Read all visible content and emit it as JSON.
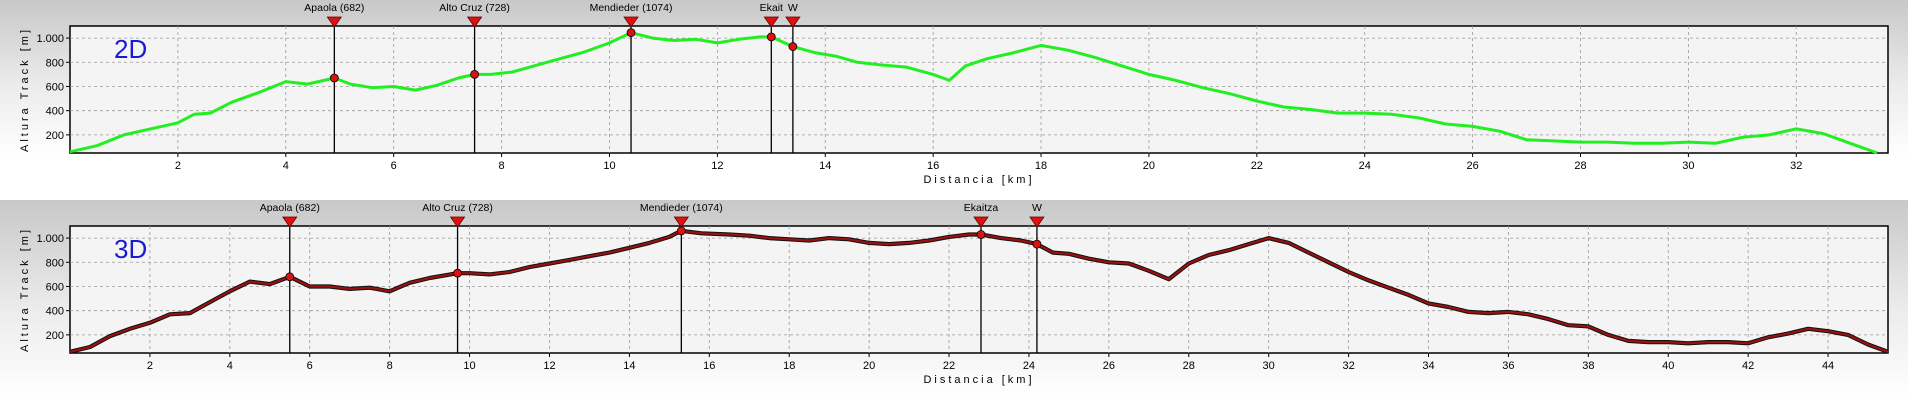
{
  "chart_data": [
    {
      "type": "line",
      "panel_label": "2D",
      "xlabel": "Distancia [km]",
      "ylabel": "Altura Track [m]",
      "xlim": [
        0,
        33.7
      ],
      "ylim": [
        50,
        1100
      ],
      "x_ticks": [
        2,
        4,
        6,
        8,
        10,
        12,
        14,
        16,
        18,
        20,
        22,
        24,
        26,
        28,
        30,
        32
      ],
      "y_ticks": [
        200,
        400,
        600,
        800,
        1000
      ],
      "y_tick_labels": [
        "200",
        "400",
        "600",
        "800",
        "1.000"
      ],
      "grid": true,
      "line_color": "#22ee22",
      "marker_color": "#dd1111",
      "waypoints": [
        {
          "name": "Apaola (682)",
          "x": 4.9,
          "y": 670
        },
        {
          "name": "Alto Cruz (728)",
          "x": 7.5,
          "y": 700
        },
        {
          "name": "Mendieder (1074)",
          "x": 10.4,
          "y": 1045
        },
        {
          "name": "Ekait",
          "x": 13.0,
          "y": 1010
        },
        {
          "name": "W",
          "x": 13.4,
          "y": 930
        }
      ],
      "series": [
        {
          "x": [
            0,
            0.5,
            1,
            1.5,
            2,
            2.3,
            2.6,
            3,
            3.5,
            4,
            4.4,
            4.9,
            5.2,
            5.6,
            6,
            6.4,
            6.8,
            7.2,
            7.5,
            7.8,
            8.2,
            8.6,
            9,
            9.5,
            10,
            10.4,
            10.8,
            11.2,
            11.6,
            12,
            12.4,
            12.8,
            13,
            13.4,
            13.8,
            14.2,
            14.6,
            15,
            15.5,
            16,
            16.3,
            16.6,
            17,
            17.5,
            18,
            18.5,
            19,
            19.5,
            20,
            20.5,
            21,
            21.5,
            22,
            22.5,
            23,
            23.5,
            24,
            24.5,
            25,
            25.5,
            26,
            26.5,
            27,
            27.5,
            28,
            28.5,
            29,
            29.5,
            30,
            30.5,
            31,
            31.5,
            32,
            32.5,
            33,
            33.5
          ],
          "y": [
            60,
            110,
            200,
            250,
            300,
            370,
            380,
            470,
            550,
            640,
            620,
            670,
            620,
            590,
            600,
            570,
            610,
            670,
            700,
            700,
            720,
            770,
            820,
            880,
            960,
            1045,
            1000,
            980,
            990,
            960,
            990,
            1010,
            1010,
            930,
            880,
            850,
            800,
            780,
            760,
            700,
            650,
            770,
            830,
            880,
            940,
            900,
            840,
            770,
            700,
            650,
            590,
            540,
            480,
            430,
            410,
            380,
            380,
            370,
            340,
            290,
            270,
            230,
            160,
            150,
            140,
            140,
            130,
            130,
            140,
            130,
            180,
            200,
            250,
            210,
            130,
            50
          ]
        }
      ]
    },
    {
      "type": "line",
      "panel_label": "3D",
      "xlabel": "Distancia [km]",
      "ylabel": "Altura Track [m]",
      "xlim": [
        0,
        45.5
      ],
      "ylim": [
        50,
        1100
      ],
      "x_ticks": [
        2,
        4,
        6,
        8,
        10,
        12,
        14,
        16,
        18,
        20,
        22,
        24,
        26,
        28,
        30,
        32,
        34,
        36,
        38,
        40,
        42,
        44
      ],
      "y_ticks": [
        200,
        400,
        600,
        800,
        1000
      ],
      "y_tick_labels": [
        "200",
        "400",
        "600",
        "800",
        "1.000"
      ],
      "grid": true,
      "line_color": "#991111",
      "marker_color": "#dd1111",
      "waypoints": [
        {
          "name": "Apaola (682)",
          "x": 5.5,
          "y": 680
        },
        {
          "name": "Alto Cruz (728)",
          "x": 9.7,
          "y": 710
        },
        {
          "name": "Mendieder (1074)",
          "x": 15.3,
          "y": 1060
        },
        {
          "name": "Ekaitza",
          "x": 22.8,
          "y": 1030
        },
        {
          "name": "W",
          "x": 24.2,
          "y": 950
        }
      ],
      "series": [
        {
          "x": [
            0,
            0.5,
            1,
            1.5,
            2,
            2.5,
            3,
            3.5,
            4,
            4.5,
            5,
            5.5,
            6,
            6.5,
            7,
            7.5,
            8,
            8.5,
            9,
            9.7,
            10,
            10.5,
            11,
            11.5,
            12,
            12.5,
            13,
            13.5,
            14,
            14.5,
            15,
            15.3,
            15.8,
            16.5,
            17,
            17.5,
            18,
            18.5,
            19,
            19.5,
            20,
            20.5,
            21,
            21.5,
            22,
            22.5,
            22.8,
            23.3,
            23.8,
            24.2,
            24.6,
            25,
            25.5,
            26,
            26.5,
            27,
            27.5,
            28,
            28.5,
            29,
            29.5,
            30,
            30.5,
            31,
            31.5,
            32,
            32.5,
            33,
            33.5,
            34,
            34.5,
            35,
            35.5,
            36,
            36.5,
            37,
            37.5,
            38,
            38.5,
            39,
            39.5,
            40,
            40.5,
            41,
            41.5,
            42,
            42.5,
            43,
            43.5,
            44,
            44.5,
            45,
            45.5
          ],
          "y": [
            60,
            100,
            190,
            250,
            300,
            370,
            380,
            470,
            560,
            640,
            620,
            680,
            600,
            600,
            580,
            590,
            560,
            630,
            670,
            710,
            710,
            700,
            720,
            760,
            790,
            820,
            850,
            880,
            920,
            960,
            1010,
            1060,
            1040,
            1030,
            1020,
            1000,
            990,
            980,
            1000,
            990,
            960,
            950,
            960,
            980,
            1010,
            1030,
            1030,
            1000,
            980,
            950,
            880,
            870,
            830,
            800,
            790,
            730,
            660,
            790,
            860,
            900,
            950,
            1000,
            960,
            880,
            800,
            720,
            650,
            590,
            530,
            460,
            430,
            390,
            380,
            390,
            370,
            330,
            280,
            270,
            200,
            150,
            140,
            140,
            130,
            140,
            140,
            130,
            180,
            210,
            250,
            230,
            200,
            120,
            60
          ]
        }
      ]
    }
  ]
}
